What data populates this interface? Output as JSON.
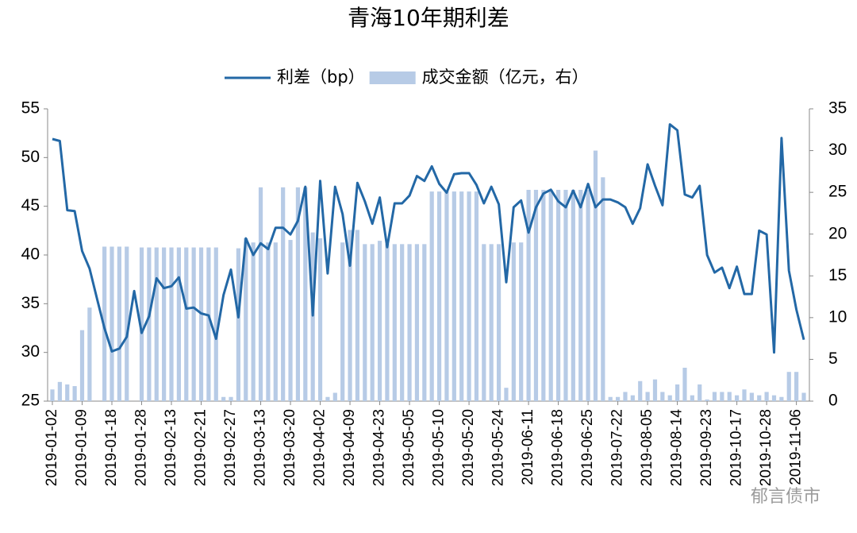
{
  "chart_data": {
    "type": "combo",
    "title": "青海10年期利差",
    "watermark": "郁言债市",
    "categories": [
      "2019-01-02",
      null,
      null,
      null,
      "2019-01-09",
      null,
      null,
      null,
      "2019-01-18",
      null,
      null,
      null,
      "2019-01-28",
      null,
      null,
      null,
      "2019-02-13",
      null,
      null,
      null,
      "2019-02-21",
      null,
      null,
      null,
      "2019-02-27",
      null,
      null,
      null,
      "2019-03-13",
      null,
      null,
      null,
      "2019-03-20",
      null,
      null,
      null,
      "2019-04-02",
      null,
      null,
      null,
      "2019-04-09",
      null,
      null,
      null,
      "2019-04-23",
      null,
      null,
      null,
      "2019-05-05",
      null,
      null,
      null,
      "2019-05-10",
      null,
      null,
      null,
      "2019-05-20",
      null,
      null,
      null,
      "2019-05-24",
      null,
      null,
      null,
      "2019-06-11",
      null,
      null,
      null,
      "2019-06-18",
      null,
      null,
      null,
      "2019-06-25",
      null,
      null,
      null,
      "2019-07-22",
      null,
      null,
      null,
      "2019-08-05",
      null,
      null,
      null,
      "2019-08-14",
      null,
      null,
      null,
      "2019-09-23",
      null,
      null,
      null,
      "2019-10-17",
      null,
      null,
      null,
      "2019-10-28",
      null,
      null,
      null,
      "2019-11-06",
      null
    ],
    "series": [
      {
        "name": "利差（bp）",
        "type": "line",
        "color": "#2368a6",
        "values": [
          51.9,
          51.7,
          44.6,
          44.5,
          40.4,
          38.6,
          35.5,
          32.5,
          30.1,
          30.4,
          31.6,
          36.3,
          32.0,
          33.7,
          37.6,
          36.6,
          36.8,
          37.7,
          34.5,
          34.6,
          34.0,
          33.8,
          31.4,
          35.9,
          38.5,
          33.6,
          41.7,
          40.0,
          41.2,
          40.6,
          42.8,
          42.8,
          42.1,
          43.5,
          47.0,
          33.8,
          47.6,
          38.1,
          47.0,
          44.2,
          38.9,
          47.4,
          45.5,
          43.2,
          45.9,
          40.8,
          45.3,
          45.3,
          46.1,
          48.1,
          47.6,
          49.1,
          47.3,
          46.4,
          48.3,
          48.4,
          48.4,
          47.2,
          45.3,
          47.0,
          45.2,
          37.2,
          44.9,
          45.6,
          42.3,
          44.9,
          46.3,
          46.7,
          45.5,
          44.9,
          46.6,
          44.9,
          47.3,
          44.9,
          45.7,
          45.7,
          45.4,
          44.9,
          43.2,
          44.8,
          49.3,
          47.1,
          45.1,
          53.4,
          52.8,
          46.2,
          45.9,
          47.1,
          40.0,
          38.2,
          38.7,
          36.6,
          38.8,
          36.0,
          36.0,
          42.5,
          42.1,
          30.0,
          52.0,
          38.4,
          34.4,
          31.3
        ]
      },
      {
        "name": "成交金额（亿元，右）",
        "type": "bar",
        "axis": "y2",
        "color": "#b7cbe6",
        "values": [
          1.4,
          2.3,
          2.0,
          1.8,
          8.5,
          11.2,
          null,
          18.5,
          18.5,
          18.5,
          18.5,
          null,
          18.4,
          18.4,
          18.4,
          18.4,
          18.4,
          18.4,
          18.4,
          18.4,
          18.4,
          18.4,
          18.4,
          0.5,
          0.5,
          18.3,
          19.5,
          19.0,
          25.6,
          19.0,
          19.0,
          25.6,
          19.3,
          25.6,
          25.6,
          20.2,
          19.5,
          0.5,
          1.0,
          19.0,
          20.5,
          20.5,
          18.8,
          18.8,
          19.2,
          18.8,
          18.8,
          18.8,
          18.8,
          18.8,
          18.8,
          25.1,
          25.1,
          25.1,
          25.1,
          25.1,
          25.1,
          25.1,
          18.8,
          18.8,
          18.8,
          1.6,
          19.0,
          19.0,
          25.3,
          25.3,
          25.3,
          25.3,
          25.3,
          25.3,
          25.3,
          25.3,
          25.3,
          30.0,
          26.8,
          0.5,
          0.5,
          1.1,
          0.7,
          2.4,
          1.1,
          2.6,
          1.1,
          0.7,
          2.0,
          4.0,
          0.7,
          2.0,
          0.2,
          1.1,
          1.1,
          1.1,
          0.7,
          1.4,
          1.0,
          0.7,
          1.1,
          0.7,
          0.5,
          3.5,
          3.5,
          1.0
        ]
      }
    ],
    "ylim": [
      25,
      55
    ],
    "yticks": [
      25,
      30,
      35,
      40,
      45,
      50,
      55
    ],
    "y2lim": [
      0,
      35
    ],
    "y2ticks": [
      0,
      5,
      10,
      15,
      20,
      25,
      30,
      35
    ],
    "grid": false,
    "legend": "top"
  }
}
